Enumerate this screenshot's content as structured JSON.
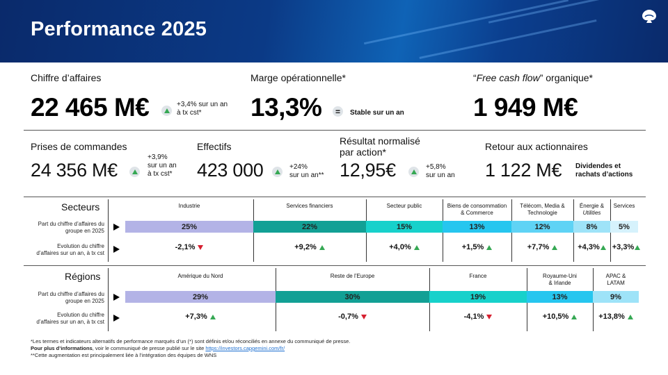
{
  "header": {
    "title": "Performance 2025"
  },
  "top_kpis": [
    {
      "label": "Chiffre d’affaires",
      "value": "22 465 M€",
      "note": [
        "+3,4% sur un an",
        "à tx cst*"
      ]
    },
    {
      "label": "Marge opérationnelle*",
      "value": "13,3%",
      "note": [
        "Stable sur un an"
      ]
    },
    {
      "label_pre": "“",
      "label_italic": "Free cash flow",
      "label_post": "” organique*",
      "value": "1 949 M€"
    }
  ],
  "mid_kpis": [
    {
      "label": "Prises de commandes",
      "value": "24 356 M€",
      "note": [
        "+3,9%",
        "sur un an",
        "à tx cst*"
      ]
    },
    {
      "label": "Effectifs",
      "value": "423 000",
      "note": [
        "+24%",
        "sur un an**"
      ]
    },
    {
      "label": [
        "Résultat normalisé",
        "par action*"
      ],
      "value": "12,95€",
      "note": [
        "+5,8%",
        "sur un an"
      ]
    },
    {
      "label": "Retour aux actionnaires",
      "value": "1 122 M€",
      "note": [
        "Dividendes et",
        "rachats d’actions"
      ]
    }
  ],
  "secteurs": {
    "title": "Secteurs",
    "row1_label": [
      "Part du chiffre d’affaires du",
      "groupe en 2025"
    ],
    "row2_label": [
      "Evolution du chiffre",
      "d’affaires sur un an, à tx cst"
    ],
    "columns": [
      {
        "head": [
          "Industrie"
        ],
        "share": "25%",
        "evo": "-2,1%",
        "dir": "down",
        "color": "#b3b3e6"
      },
      {
        "head": [
          "Services financiers"
        ],
        "share": "22%",
        "evo": "+9,2%",
        "dir": "up",
        "color": "#12a095"
      },
      {
        "head": [
          "Secteur public"
        ],
        "share": "15%",
        "evo": "+4,0%",
        "dir": "up",
        "color": "#17d1cb"
      },
      {
        "head": [
          "Biens de consommation",
          "& Commerce"
        ],
        "share": "13%",
        "evo": "+1,5%",
        "dir": "up",
        "color": "#26c6ef"
      },
      {
        "head": [
          "Télécom, Media &",
          "Technologie"
        ],
        "share": "12%",
        "evo": "+7,7%",
        "dir": "up",
        "color": "#5fd3f5"
      },
      {
        "head_pre": "Énergie &",
        "head_italic": "Utilities",
        "share": "8%",
        "evo": "+4,3%",
        "dir": "up",
        "color": "#9ee3f8"
      },
      {
        "head": [
          "Services"
        ],
        "share": "5%",
        "evo": "+3,3%",
        "dir": "up",
        "color": "#d6f2fc"
      }
    ]
  },
  "regions": {
    "title": "Régions",
    "row1_label": [
      "Part du chiffre d’affaires du",
      "groupe en 2025"
    ],
    "row2_label": [
      "Evolution du chiffre",
      "d’affaires sur un an, à tx cst"
    ],
    "columns": [
      {
        "head": [
          "Amérique du Nord"
        ],
        "share": "29%",
        "evo": "+7,3%",
        "dir": "up",
        "color": "#b3b3e6"
      },
      {
        "head": [
          "Reste de l’Europe"
        ],
        "share": "30%",
        "evo": "-0,7%",
        "dir": "down",
        "color": "#12a095"
      },
      {
        "head": [
          "France"
        ],
        "share": "19%",
        "evo": "-4,1%",
        "dir": "down",
        "color": "#17d1cb"
      },
      {
        "head": [
          "Royaume-Uni",
          "& Irlande"
        ],
        "share": "13%",
        "evo": "+10,5%",
        "dir": "up",
        "color": "#26c6ef"
      },
      {
        "head": [
          "APAC &",
          "LATAM"
        ],
        "share": "9%",
        "evo": "+13,8%",
        "dir": "up",
        "color": "#9ee3f8"
      }
    ]
  },
  "footnotes": {
    "line1": "*Les termes et indicateurs alternatifs de performance marqués d’un (*) sont définis et/ou réconciliés en annexe du communiqué de presse.",
    "line2_bold": "Pour plus d’informations",
    "line2_text": ", voir le communiqué de presse publié sur le site ",
    "line2_link": "https://investors.capgemini.com/fr/",
    "line3": "**Cette augmentation est principalement liée à l’intégration des équipes de WNS"
  }
}
